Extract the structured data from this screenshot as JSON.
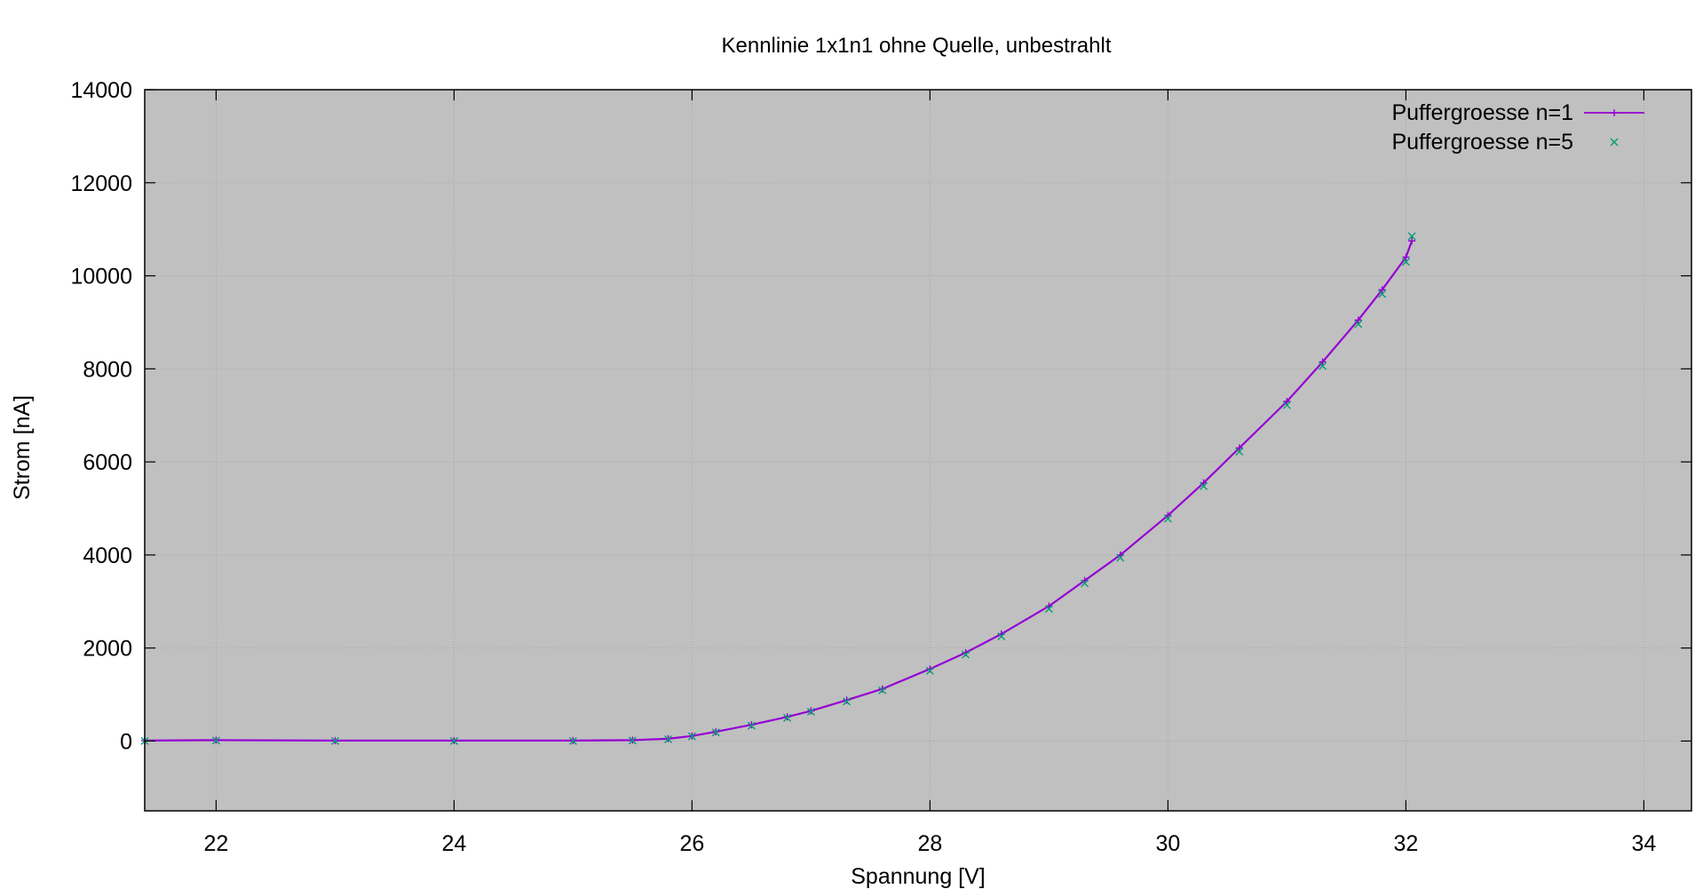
{
  "chart_data": {
    "type": "scatter",
    "title": "Kennlinie 1x1n1 ohne Quelle, unbestrahlt",
    "xlabel": "Spannung [V]",
    "ylabel": "Strom [nA]",
    "xlim": [
      21.4,
      34.4
    ],
    "ylim": [
      -1500,
      14000
    ],
    "xticks": [
      22,
      24,
      26,
      28,
      30,
      32,
      34
    ],
    "yticks": [
      0,
      2000,
      4000,
      6000,
      8000,
      10000,
      12000,
      14000
    ],
    "grid": true,
    "background": "#c0c0c0",
    "legend_position": "top-right",
    "series": [
      {
        "name": "Puffergroesse n=1",
        "marker": "plus-with-line",
        "color": "#9400d3",
        "x": [
          21.4,
          22.0,
          23.0,
          24.0,
          25.0,
          25.5,
          25.8,
          26.0,
          26.2,
          26.5,
          26.8,
          27.0,
          27.3,
          27.6,
          28.0,
          28.3,
          28.6,
          29.0,
          29.3,
          29.6,
          30.0,
          30.3,
          30.6,
          31.0,
          31.3,
          31.6,
          31.8,
          32.0,
          32.05
        ],
        "y": [
          10,
          20,
          10,
          10,
          10,
          20,
          50,
          110,
          200,
          350,
          520,
          650,
          880,
          1120,
          1550,
          1900,
          2300,
          2900,
          3450,
          4000,
          4850,
          5550,
          6300,
          7300,
          8150,
          9050,
          9700,
          10400,
          10750
        ]
      },
      {
        "name": "Puffergroesse n=5",
        "marker": "cross",
        "color": "#009e73",
        "x": [
          21.4,
          22.0,
          23.0,
          24.0,
          25.0,
          25.5,
          25.8,
          26.0,
          26.2,
          26.5,
          26.8,
          27.0,
          27.3,
          27.6,
          28.0,
          28.3,
          28.6,
          29.0,
          29.3,
          29.6,
          30.0,
          30.3,
          30.6,
          31.0,
          31.3,
          31.6,
          31.8,
          32.0,
          32.05
        ],
        "y": [
          0,
          10,
          0,
          0,
          0,
          10,
          40,
          100,
          185,
          330,
          500,
          630,
          850,
          1090,
          1510,
          1860,
          2250,
          2840,
          3390,
          3940,
          4780,
          5480,
          6220,
          7220,
          8060,
          8960,
          9610,
          10300,
          10850
        ]
      }
    ]
  }
}
